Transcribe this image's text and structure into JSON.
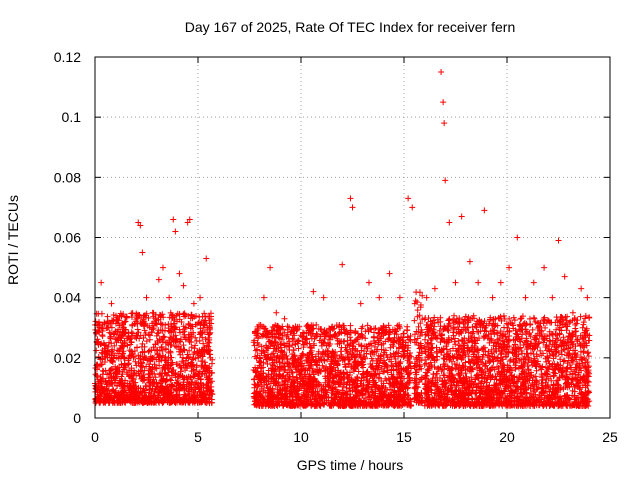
{
  "chart_data": {
    "type": "scatter",
    "title": "Day 167 of 2025, Rate Of TEC Index for receiver fern",
    "xlabel": "GPS time / hours",
    "ylabel": "ROTI / TECUs",
    "xlim": [
      0,
      25
    ],
    "ylim": [
      0,
      0.12
    ],
    "x_ticks": [
      {
        "value": 0,
        "label": "0"
      },
      {
        "value": 5,
        "label": "5"
      },
      {
        "value": 10,
        "label": "10"
      },
      {
        "value": 15,
        "label": "15"
      },
      {
        "value": 20,
        "label": "20"
      },
      {
        "value": 25,
        "label": "25"
      }
    ],
    "y_ticks": [
      {
        "value": 0,
        "label": "0"
      },
      {
        "value": 0.02,
        "label": "0.02"
      },
      {
        "value": 0.04,
        "label": "0.04"
      },
      {
        "value": 0.06,
        "label": "0.06"
      },
      {
        "value": 0.08,
        "label": "0.08"
      },
      {
        "value": 0.1,
        "label": "0.1"
      },
      {
        "value": 0.12,
        "label": "0.12"
      }
    ],
    "grid": true,
    "marker": "+",
    "series_color": "#ff0000",
    "series": [
      {
        "name": "ROTI",
        "x": [
          0.1,
          0.3,
          0.5,
          0.8,
          1.1,
          1.4,
          1.8,
          2.1,
          2.2,
          2.3,
          2.5,
          2.8,
          3.1,
          3.3,
          3.6,
          3.8,
          3.9,
          4.1,
          4.3,
          4.5,
          4.6,
          4.8,
          5.1,
          5.4,
          5.6,
          7.9,
          8.2,
          8.5,
          8.8,
          9.2,
          9.6,
          10.1,
          10.6,
          11.1,
          11.5,
          12.0,
          12.4,
          12.5,
          12.9,
          13.3,
          13.8,
          14.3,
          14.8,
          15.2,
          15.4,
          15.6,
          16.1,
          16.5,
          16.8,
          16.9,
          16.95,
          17.0,
          17.2,
          17.5,
          17.8,
          18.2,
          18.6,
          18.9,
          19.3,
          19.7,
          20.1,
          20.5,
          20.9,
          21.3,
          21.8,
          22.2,
          22.5,
          22.8,
          23.2,
          23.6,
          23.9
        ],
        "y": [
          0.031,
          0.045,
          0.02,
          0.038,
          0.026,
          0.03,
          0.022,
          0.065,
          0.064,
          0.055,
          0.04,
          0.035,
          0.046,
          0.05,
          0.04,
          0.066,
          0.062,
          0.048,
          0.044,
          0.065,
          0.066,
          0.038,
          0.04,
          0.053,
          0.02,
          0.028,
          0.04,
          0.05,
          0.035,
          0.033,
          0.03,
          0.027,
          0.042,
          0.04,
          0.03,
          0.051,
          0.073,
          0.07,
          0.038,
          0.045,
          0.04,
          0.048,
          0.04,
          0.073,
          0.07,
          0.02,
          0.04,
          0.043,
          0.115,
          0.105,
          0.098,
          0.079,
          0.065,
          0.045,
          0.067,
          0.052,
          0.045,
          0.069,
          0.04,
          0.045,
          0.05,
          0.06,
          0.04,
          0.045,
          0.05,
          0.04,
          0.059,
          0.047,
          0.035,
          0.043,
          0.04
        ]
      }
    ],
    "activity_bands": [
      {
        "start": 0.0,
        "end": 5.7,
        "floor": 0.005,
        "typical_high": 0.025
      },
      {
        "start": 7.7,
        "end": 15.35,
        "floor": 0.004,
        "typical_high": 0.022
      },
      {
        "start": 15.5,
        "end": 15.9,
        "floor": 0.005,
        "typical_high": 0.03
      },
      {
        "start": 16.0,
        "end": 24.0,
        "floor": 0.004,
        "typical_high": 0.024
      }
    ]
  }
}
